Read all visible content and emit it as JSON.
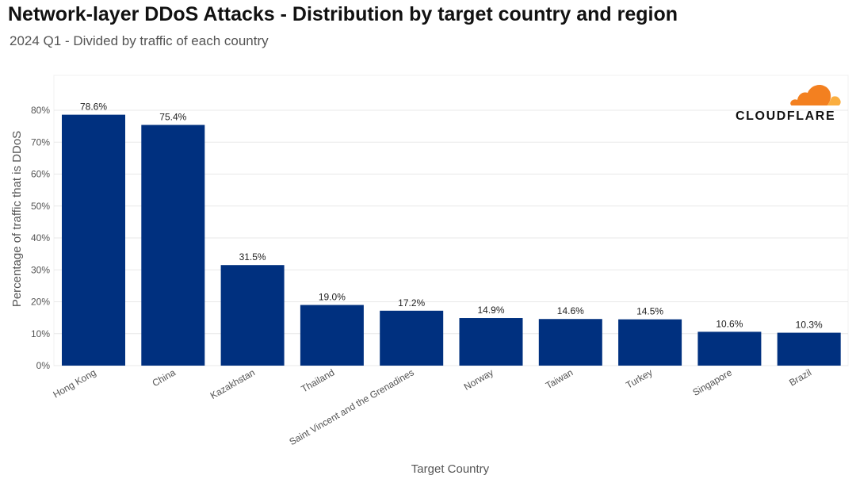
{
  "header": {
    "title": "Network-layer DDoS Attacks - Distribution by target country and region",
    "subtitle": "2024 Q1 - Divided by traffic of each country"
  },
  "logo": {
    "text": "CLOUDFLARE",
    "icon": "cloud-icon"
  },
  "colors": {
    "bar": "#00307f",
    "grid": "#e8e8e8",
    "axis_text": "#555555",
    "label_text": "#222222",
    "logo_orange": "#f38020",
    "logo_light": "#faae40"
  },
  "chart_data": {
    "type": "bar",
    "title": "Network-layer DDoS Attacks - Distribution by target country and region",
    "subtitle": "2024 Q1 - Divided by traffic of each country",
    "xlabel": "Target Country",
    "ylabel": "Percentage of traffic that is DDoS",
    "categories": [
      "Hong Kong",
      "China",
      "Kazakhstan",
      "Thailand",
      "Saint Vincent and the Grenadines",
      "Norway",
      "Taiwan",
      "Turkey",
      "Singapore",
      "Brazil"
    ],
    "values": [
      78.6,
      75.4,
      31.5,
      19.0,
      17.2,
      14.9,
      14.6,
      14.5,
      10.6,
      10.3
    ],
    "value_labels": [
      "78.6%",
      "75.4%",
      "31.5%",
      "19.0%",
      "17.2%",
      "14.9%",
      "14.6%",
      "14.5%",
      "10.6%",
      "10.3%"
    ],
    "yticks": [
      0,
      10,
      20,
      30,
      40,
      50,
      60,
      70,
      80
    ],
    "ytick_labels": [
      "0%",
      "10%",
      "20%",
      "30%",
      "40%",
      "50%",
      "60%",
      "70%",
      "80%"
    ],
    "ylim": [
      0,
      90
    ],
    "grid": true,
    "legend": "none"
  }
}
